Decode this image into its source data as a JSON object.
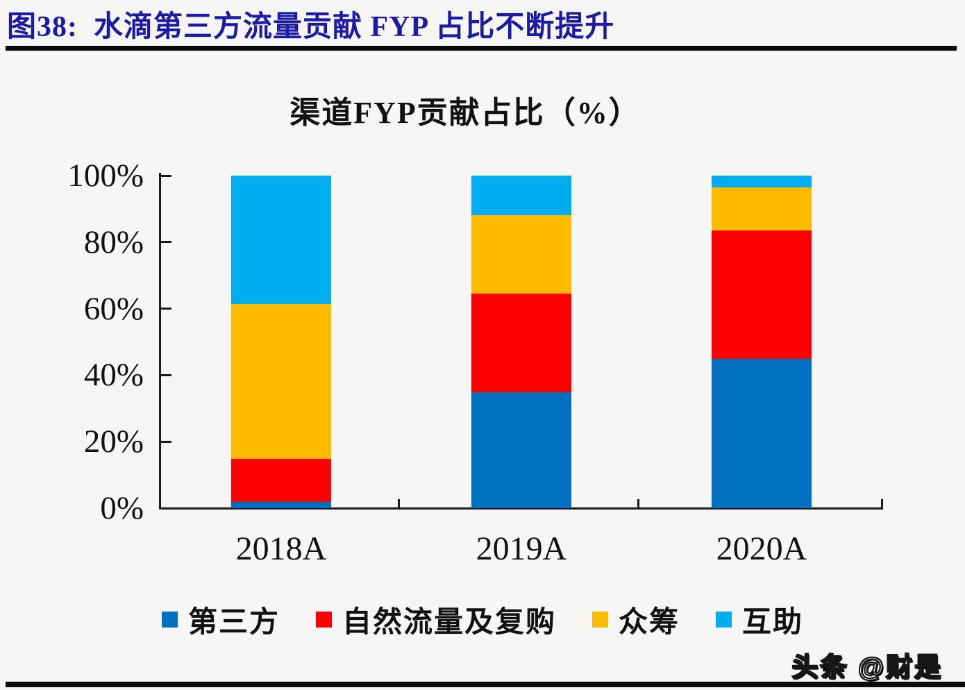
{
  "figure": {
    "title": "图38:  水滴第三方流量贡献 FYP 占比不断提升",
    "watermark": "头条 @财是"
  },
  "chart_data": {
    "type": "bar",
    "stacked": true,
    "percent_stacked": true,
    "title": "渠道FYP贡献占比（%）",
    "categories": [
      "2018A",
      "2019A",
      "2020A"
    ],
    "series": [
      {
        "name": "第三方",
        "color": "#0070C0",
        "values": [
          1.9,
          34.8,
          44.9
        ]
      },
      {
        "name": "自然流量及复购",
        "color": "#FF0000",
        "values": [
          13.0,
          29.8,
          38.6
        ]
      },
      {
        "name": "众筹",
        "color": "#FFBB00",
        "values": [
          46.5,
          23.5,
          12.9
        ]
      },
      {
        "name": "互助",
        "color": "#00AEEF",
        "values": [
          38.6,
          11.9,
          3.6
        ]
      }
    ],
    "xlabel": "",
    "ylabel": "",
    "ylim": [
      0,
      100
    ],
    "yticks": [
      "0%",
      "20%",
      "40%",
      "60%",
      "80%",
      "100%"
    ],
    "grid": false,
    "legend_position": "bottom"
  },
  "colors": {
    "figure_title": "#1b1ba6",
    "rule": "#0b0b0b",
    "axis": "#1a1a1a",
    "background": "#f7f6f4"
  }
}
